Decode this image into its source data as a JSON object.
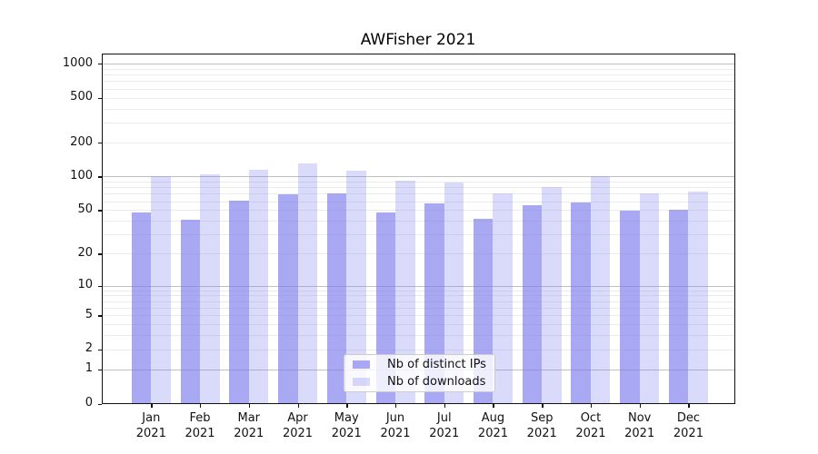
{
  "chart_data": {
    "type": "bar",
    "title": "AWFisher 2021",
    "categories": [
      "Jan 2021",
      "Feb 2021",
      "Mar 2021",
      "Apr 2021",
      "May 2021",
      "Jun 2021",
      "Jul 2021",
      "Aug 2021",
      "Sep 2021",
      "Oct 2021",
      "Nov 2021",
      "Dec 2021"
    ],
    "series": [
      {
        "name": "Nb of distinct IPs",
        "values": [
          48,
          41,
          61,
          69,
          71,
          48,
          57,
          42,
          55,
          58,
          49,
          50
        ],
        "color": "#7b7bec",
        "alpha": 0.65
      },
      {
        "name": "Nb of downloads",
        "values": [
          101,
          104,
          115,
          130,
          113,
          91,
          88,
          71,
          81,
          100,
          71,
          73
        ],
        "color": "#7b7bec",
        "alpha": 0.28
      }
    ],
    "xlabel": "",
    "ylabel": "",
    "yscale": "log1p",
    "ylim": [
      0,
      1230
    ],
    "yticks": [
      0,
      1,
      2,
      5,
      10,
      20,
      50,
      100,
      200,
      500,
      1000
    ],
    "grid": {
      "on": true,
      "major_ticks": [
        1,
        10,
        100,
        1000
      ],
      "major_color": "#c0c0c0",
      "minor_color": "#ebebeb"
    },
    "legend": {
      "position": "lower-center-inside"
    },
    "axis_color": "#111111",
    "background": "#ffffff"
  }
}
